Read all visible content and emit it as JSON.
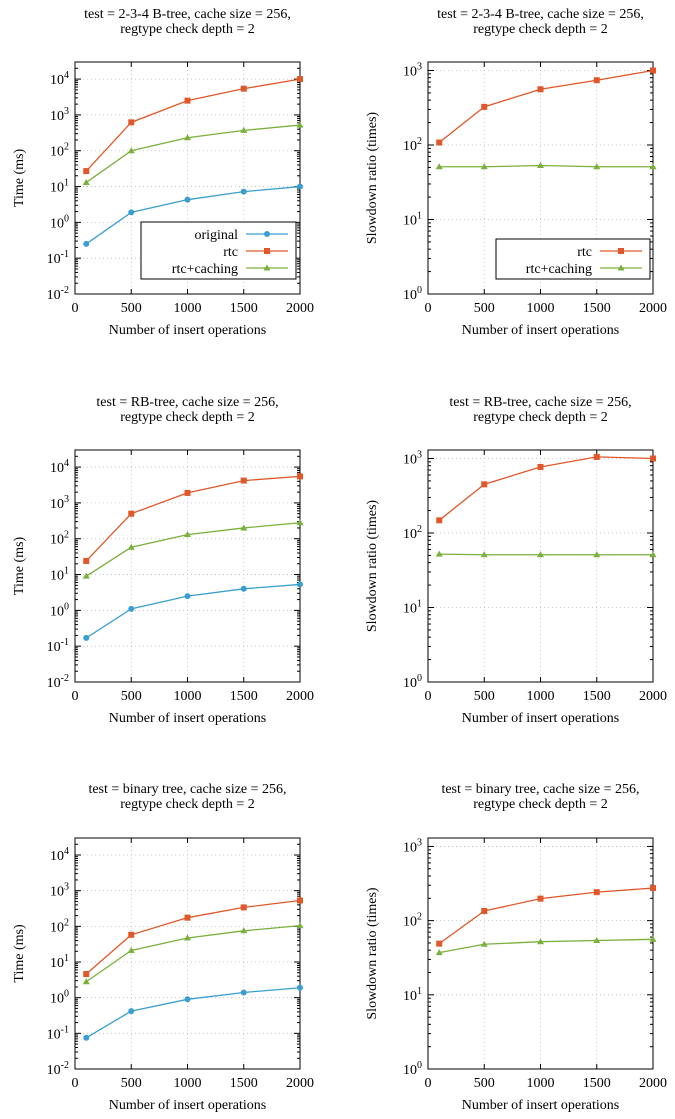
{
  "colors": {
    "original": "#3a9fd0",
    "rtc": "#e0582a",
    "rtc_caching": "#7ab03c",
    "grid": "#bbbbbb"
  },
  "chart_data": [
    {
      "type": "line",
      "title": "test = 2-3-4 B-tree, cache size = 256,",
      "subtitle": "regtype check depth = 2",
      "xlabel": "Number of insert operations",
      "ylabel": "Time (ms)",
      "xlim": [
        0,
        2000
      ],
      "ylim": [
        0.01,
        30000
      ],
      "yscale": "log",
      "x_ticks": [
        "0",
        "500",
        "1000",
        "1500",
        "2000"
      ],
      "y_ticks": [
        [
          "10",
          "-2"
        ],
        [
          "10",
          "-1"
        ],
        [
          "10",
          "0"
        ],
        [
          "10",
          "1"
        ],
        [
          "10",
          "2"
        ],
        [
          "10",
          "3"
        ],
        [
          "10",
          "4"
        ]
      ],
      "grid": true,
      "legend_position": "bottom-right",
      "x": [
        100,
        500,
        1000,
        1500,
        2000
      ],
      "series": [
        {
          "name": "original",
          "color": "original",
          "marker": "circle",
          "values": [
            0.25,
            1.9,
            4.3,
            7.2,
            10
          ]
        },
        {
          "name": "rtc",
          "color": "rtc",
          "marker": "square",
          "values": [
            27,
            620,
            2500,
            5400,
            10000
          ]
        },
        {
          "name": "rtc+caching",
          "color": "rtc_caching",
          "marker": "triangle",
          "values": [
            13,
            100,
            230,
            370,
            520
          ]
        }
      ]
    },
    {
      "type": "line",
      "title": "test = 2-3-4 B-tree, cache size = 256,",
      "subtitle": "regtype check depth = 2",
      "xlabel": "Number of insert operations",
      "ylabel": "Slowdown ratio (times)",
      "xlim": [
        0,
        2000
      ],
      "ylim": [
        1,
        1300
      ],
      "yscale": "log",
      "x_ticks": [
        "0",
        "500",
        "1000",
        "1500",
        "2000"
      ],
      "y_ticks": [
        [
          "10",
          "0"
        ],
        [
          "10",
          "1"
        ],
        [
          "10",
          "2"
        ],
        [
          "10",
          "3"
        ]
      ],
      "grid": true,
      "legend_position": "bottom-right",
      "x": [
        100,
        500,
        1000,
        1500,
        2000
      ],
      "series": [
        {
          "name": "rtc",
          "color": "rtc",
          "marker": "square",
          "values": [
            108,
            325,
            560,
            740,
            1000
          ]
        },
        {
          "name": "rtc+caching",
          "color": "rtc_caching",
          "marker": "triangle",
          "values": [
            51,
            51,
            53,
            51,
            51
          ]
        }
      ]
    },
    {
      "type": "line",
      "title": "test = RB-tree, cache size = 256,",
      "subtitle": "regtype check depth = 2",
      "xlabel": "Number of insert operations",
      "ylabel": "Time (ms)",
      "xlim": [
        0,
        2000
      ],
      "ylim": [
        0.01,
        30000
      ],
      "yscale": "log",
      "x_ticks": [
        "0",
        "500",
        "1000",
        "1500",
        "2000"
      ],
      "y_ticks": [
        [
          "10",
          "-2"
        ],
        [
          "10",
          "-1"
        ],
        [
          "10",
          "0"
        ],
        [
          "10",
          "1"
        ],
        [
          "10",
          "2"
        ],
        [
          "10",
          "3"
        ],
        [
          "10",
          "4"
        ]
      ],
      "grid": true,
      "legend_position": "none",
      "x": [
        100,
        500,
        1000,
        1500,
        2000
      ],
      "series": [
        {
          "name": "original",
          "color": "original",
          "marker": "circle",
          "values": [
            0.17,
            1.1,
            2.5,
            4.0,
            5.3
          ]
        },
        {
          "name": "rtc",
          "color": "rtc",
          "marker": "square",
          "values": [
            24,
            500,
            1900,
            4200,
            5500
          ]
        },
        {
          "name": "rtc+caching",
          "color": "rtc_caching",
          "marker": "triangle",
          "values": [
            9,
            58,
            130,
            200,
            280
          ]
        }
      ]
    },
    {
      "type": "line",
      "title": "test = RB-tree, cache size = 256,",
      "subtitle": "regtype check depth = 2",
      "xlabel": "Number of insert operations",
      "ylabel": "Slowdown ratio (times)",
      "xlim": [
        0,
        2000
      ],
      "ylim": [
        1,
        1300
      ],
      "yscale": "log",
      "x_ticks": [
        "0",
        "500",
        "1000",
        "1500",
        "2000"
      ],
      "y_ticks": [
        [
          "10",
          "0"
        ],
        [
          "10",
          "1"
        ],
        [
          "10",
          "2"
        ],
        [
          "10",
          "3"
        ]
      ],
      "grid": true,
      "legend_position": "none",
      "x": [
        100,
        500,
        1000,
        1500,
        2000
      ],
      "series": [
        {
          "name": "rtc",
          "color": "rtc",
          "marker": "square",
          "values": [
            148,
            450,
            770,
            1050,
            1000
          ]
        },
        {
          "name": "rtc+caching",
          "color": "rtc_caching",
          "marker": "triangle",
          "values": [
            52,
            51,
            51,
            51,
            51
          ]
        }
      ]
    },
    {
      "type": "line",
      "title": "test = binary tree, cache size = 256,",
      "subtitle": "regtype check depth = 2",
      "xlabel": "Number of insert operations",
      "ylabel": "Time (ms)",
      "xlim": [
        0,
        2000
      ],
      "ylim": [
        0.01,
        30000
      ],
      "yscale": "log",
      "x_ticks": [
        "0",
        "500",
        "1000",
        "1500",
        "2000"
      ],
      "y_ticks": [
        [
          "10",
          "-2"
        ],
        [
          "10",
          "-1"
        ],
        [
          "10",
          "0"
        ],
        [
          "10",
          "1"
        ],
        [
          "10",
          "2"
        ],
        [
          "10",
          "3"
        ],
        [
          "10",
          "4"
        ]
      ],
      "grid": true,
      "legend_position": "none",
      "x": [
        100,
        500,
        1000,
        1500,
        2000
      ],
      "series": [
        {
          "name": "original",
          "color": "original",
          "marker": "circle",
          "values": [
            0.075,
            0.42,
            0.9,
            1.4,
            1.9
          ]
        },
        {
          "name": "rtc",
          "color": "rtc",
          "marker": "square",
          "values": [
            4.6,
            58,
            175,
            340,
            530
          ]
        },
        {
          "name": "rtc+caching",
          "color": "rtc_caching",
          "marker": "triangle",
          "values": [
            2.8,
            21,
            47,
            75,
            105
          ]
        }
      ]
    },
    {
      "type": "line",
      "title": "test = binary tree, cache size = 256,",
      "subtitle": "regtype check depth = 2",
      "xlabel": "Number of insert operations",
      "ylabel": "Slowdown ratio (times)",
      "xlim": [
        0,
        2000
      ],
      "ylim": [
        1,
        1300
      ],
      "yscale": "log",
      "x_ticks": [
        "0",
        "500",
        "1000",
        "1500",
        "2000"
      ],
      "y_ticks": [
        [
          "10",
          "0"
        ],
        [
          "10",
          "1"
        ],
        [
          "10",
          "2"
        ],
        [
          "10",
          "3"
        ]
      ],
      "grid": true,
      "legend_position": "none",
      "x": [
        100,
        500,
        1000,
        1500,
        2000
      ],
      "series": [
        {
          "name": "rtc",
          "color": "rtc",
          "marker": "square",
          "values": [
            49,
            135,
            198,
            242,
            275
          ]
        },
        {
          "name": "rtc+caching",
          "color": "rtc_caching",
          "marker": "triangle",
          "values": [
            37,
            48,
            52,
            54,
            56
          ]
        }
      ]
    }
  ]
}
